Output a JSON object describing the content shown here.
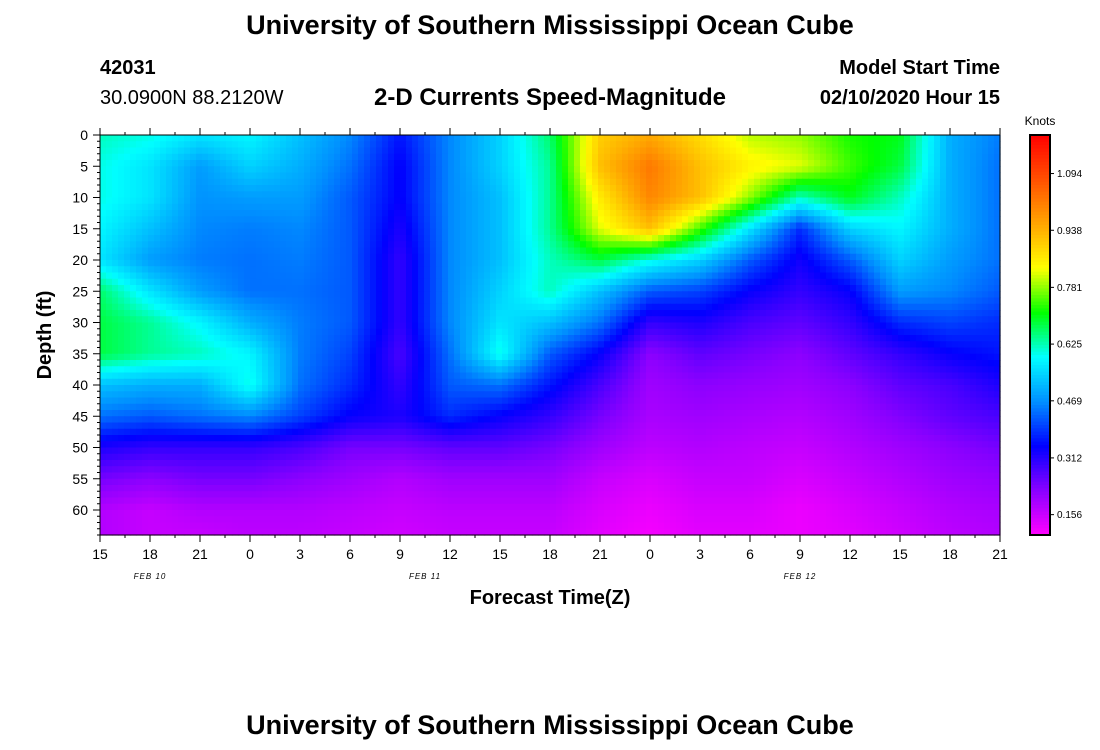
{
  "page": {
    "title_top": "University of Southern Mississippi Ocean Cube",
    "title_bottom": "University of Southern Mississippi Ocean Cube",
    "station_id": "42031",
    "station_location": "30.0900N 88.2120W",
    "plot_title": "2-D Currents Speed-Magnitude",
    "model_start_label": "Model Start Time",
    "model_start_value": "02/10/2020 Hour 15"
  },
  "chart_data": {
    "type": "heatmap",
    "title": "2-D Currents Speed-Magnitude",
    "xlabel": "Forecast Time(Z)",
    "ylabel": "Depth (ft)",
    "x_tick_labels": [
      "15",
      "18",
      "21",
      "0",
      "3",
      "6",
      "9",
      "12",
      "15",
      "18",
      "21",
      "0",
      "3",
      "6",
      "9",
      "12",
      "15",
      "18",
      "21"
    ],
    "date_labels": [
      {
        "text": "FEB 10",
        "tick_index": 1
      },
      {
        "text": "FEB 11",
        "tick_index": 6.5
      },
      {
        "text": "FEB 12",
        "tick_index": 14
      }
    ],
    "y_ticks": [
      0,
      5,
      10,
      15,
      20,
      25,
      30,
      35,
      40,
      45,
      50,
      55,
      60
    ],
    "ylim": [
      0,
      64
    ],
    "colorbar": {
      "unit_label": "Knots",
      "tick_labels": [
        "1.094",
        "0.938",
        "0.781",
        "0.625",
        "0.469",
        "0.312",
        "0.156"
      ],
      "tick_values": [
        1.094,
        0.938,
        0.781,
        0.625,
        0.469,
        0.312,
        0.156
      ],
      "range": [
        0.1,
        1.2
      ],
      "colors": [
        "#ff00ff",
        "#8a00ff",
        "#0000ff",
        "#0090ff",
        "#00ffff",
        "#00ff00",
        "#ffff00",
        "#ffa500",
        "#ff5000",
        "#ff0000"
      ]
    },
    "x_hours": [
      0,
      3,
      6,
      9,
      12,
      15,
      18,
      21,
      24,
      27,
      30,
      33,
      36,
      39,
      42,
      45,
      48,
      51,
      54
    ],
    "depths": [
      0,
      5,
      10,
      15,
      20,
      25,
      30,
      35,
      40,
      45,
      50,
      55,
      60,
      64
    ],
    "speed_grid": [
      [
        0.62,
        0.6,
        0.56,
        0.58,
        0.52,
        0.46,
        0.36,
        0.46,
        0.54,
        0.66,
        0.9,
        0.95,
        0.88,
        0.8,
        0.78,
        0.72,
        0.7,
        0.5,
        0.45
      ],
      [
        0.6,
        0.56,
        0.48,
        0.54,
        0.5,
        0.44,
        0.34,
        0.46,
        0.54,
        0.64,
        0.92,
        1.02,
        0.92,
        0.85,
        0.82,
        0.74,
        0.68,
        0.5,
        0.44
      ],
      [
        0.6,
        0.56,
        0.47,
        0.48,
        0.48,
        0.42,
        0.34,
        0.46,
        0.52,
        0.64,
        0.86,
        1.0,
        0.92,
        0.78,
        0.62,
        0.7,
        0.62,
        0.5,
        0.44
      ],
      [
        0.58,
        0.52,
        0.46,
        0.45,
        0.46,
        0.42,
        0.32,
        0.46,
        0.52,
        0.64,
        0.82,
        0.92,
        0.74,
        0.56,
        0.38,
        0.54,
        0.58,
        0.5,
        0.44
      ],
      [
        0.56,
        0.48,
        0.45,
        0.44,
        0.45,
        0.42,
        0.3,
        0.46,
        0.52,
        0.62,
        0.68,
        0.6,
        0.54,
        0.42,
        0.33,
        0.42,
        0.54,
        0.48,
        0.44
      ],
      [
        0.66,
        0.56,
        0.48,
        0.44,
        0.44,
        0.42,
        0.3,
        0.46,
        0.54,
        0.62,
        0.52,
        0.42,
        0.4,
        0.34,
        0.3,
        0.34,
        0.48,
        0.46,
        0.42
      ],
      [
        0.68,
        0.64,
        0.58,
        0.5,
        0.45,
        0.42,
        0.3,
        0.46,
        0.56,
        0.52,
        0.44,
        0.3,
        0.32,
        0.28,
        0.26,
        0.3,
        0.38,
        0.4,
        0.38
      ],
      [
        0.68,
        0.64,
        0.62,
        0.58,
        0.45,
        0.4,
        0.28,
        0.44,
        0.6,
        0.42,
        0.34,
        0.22,
        0.26,
        0.24,
        0.22,
        0.26,
        0.3,
        0.34,
        0.36
      ],
      [
        0.52,
        0.5,
        0.5,
        0.6,
        0.44,
        0.38,
        0.3,
        0.42,
        0.44,
        0.36,
        0.28,
        0.2,
        0.22,
        0.21,
        0.2,
        0.22,
        0.26,
        0.28,
        0.32
      ],
      [
        0.44,
        0.42,
        0.44,
        0.46,
        0.4,
        0.34,
        0.32,
        0.38,
        0.34,
        0.3,
        0.24,
        0.19,
        0.2,
        0.19,
        0.18,
        0.2,
        0.23,
        0.26,
        0.28
      ],
      [
        0.32,
        0.3,
        0.3,
        0.3,
        0.28,
        0.24,
        0.24,
        0.26,
        0.26,
        0.24,
        0.2,
        0.17,
        0.18,
        0.17,
        0.16,
        0.18,
        0.2,
        0.22,
        0.24
      ],
      [
        0.24,
        0.22,
        0.24,
        0.24,
        0.22,
        0.2,
        0.18,
        0.2,
        0.2,
        0.2,
        0.16,
        0.14,
        0.16,
        0.16,
        0.14,
        0.16,
        0.18,
        0.2,
        0.21
      ],
      [
        0.18,
        0.16,
        0.18,
        0.18,
        0.18,
        0.17,
        0.16,
        0.17,
        0.17,
        0.17,
        0.14,
        0.12,
        0.14,
        0.14,
        0.12,
        0.14,
        0.16,
        0.18,
        0.19
      ],
      [
        0.18,
        0.16,
        0.16,
        0.17,
        0.17,
        0.16,
        0.15,
        0.16,
        0.16,
        0.16,
        0.13,
        0.11,
        0.13,
        0.13,
        0.12,
        0.13,
        0.15,
        0.17,
        0.18
      ]
    ]
  }
}
